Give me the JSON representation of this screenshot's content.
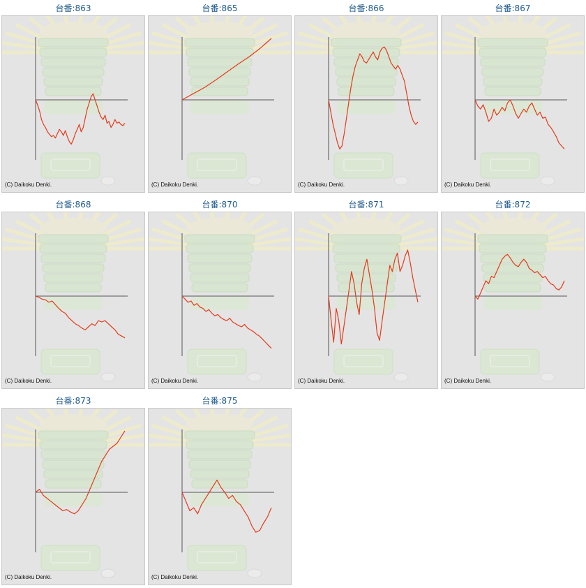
{
  "copyright": "(C) Daikoku Denki.",
  "colors": {
    "series_line": "#e53a1a",
    "axis": "#555555",
    "panel_bg": "#e4e4e4",
    "title": "#1f5a8c"
  },
  "chart_data": [
    {
      "type": "line",
      "title": "台番:863",
      "xlabel": "",
      "ylabel": "",
      "x_range": [
        0,
        100
      ],
      "ylim": [
        -100,
        100
      ],
      "grid": false,
      "values": [
        0,
        -8,
        -18,
        -32,
        -40,
        -45,
        -52,
        -56,
        -60,
        -58,
        -62,
        -55,
        -48,
        -52,
        -58,
        -50,
        -60,
        -68,
        -72,
        -65,
        -55,
        -48,
        -40,
        -52,
        -45,
        -30,
        -15,
        -5,
        5,
        10,
        0,
        -10,
        -20,
        -28,
        -32,
        -25,
        -38,
        -35,
        -45,
        -40,
        -32,
        -38,
        -36,
        -40,
        -42,
        -38
      ]
    },
    {
      "type": "line",
      "title": "台番:865",
      "xlabel": "",
      "ylabel": "",
      "x_range": [
        0,
        100
      ],
      "ylim": [
        -100,
        100
      ],
      "grid": false,
      "values": [
        0,
        10,
        20,
        32,
        45,
        58,
        70,
        84,
        100
      ]
    },
    {
      "type": "line",
      "title": "台番:866",
      "xlabel": "",
      "ylabel": "",
      "x_range": [
        0,
        100
      ],
      "ylim": [
        -100,
        100
      ],
      "grid": false,
      "values": [
        0,
        -20,
        -40,
        -55,
        -70,
        -80,
        -75,
        -55,
        -30,
        -5,
        20,
        40,
        55,
        65,
        75,
        70,
        62,
        60,
        66,
        72,
        78,
        70,
        65,
        78,
        84,
        86,
        80,
        70,
        60,
        55,
        50,
        56,
        50,
        40,
        30,
        10,
        -10,
        -25,
        -35,
        -40,
        -36
      ]
    },
    {
      "type": "line",
      "title": "台番:867",
      "xlabel": "",
      "ylabel": "",
      "x_range": [
        0,
        100
      ],
      "ylim": [
        -100,
        100
      ],
      "grid": false,
      "values": [
        0,
        -10,
        -15,
        -8,
        -20,
        -35,
        -30,
        -15,
        -25,
        -20,
        -12,
        -18,
        -5,
        0,
        -10,
        -22,
        -30,
        -22,
        -15,
        -20,
        -10,
        -5,
        -15,
        -25,
        -20,
        -30,
        -28,
        -40,
        -45,
        -52,
        -60,
        -70,
        -75,
        -80
      ]
    },
    {
      "type": "line",
      "title": "台番:868",
      "xlabel": "",
      "ylabel": "",
      "x_range": [
        0,
        100
      ],
      "ylim": [
        -100,
        100
      ],
      "grid": false,
      "values": [
        0,
        -2,
        -5,
        -6,
        -10,
        -8,
        -14,
        -20,
        -25,
        -28,
        -35,
        -40,
        -45,
        -48,
        -52,
        -55,
        -50,
        -45,
        -48,
        -40,
        -42,
        -40,
        -45,
        -50,
        -55,
        -62,
        -65,
        -68
      ]
    },
    {
      "type": "line",
      "title": "台番:870",
      "xlabel": "",
      "ylabel": "",
      "x_range": [
        0,
        100
      ],
      "ylim": [
        -100,
        100
      ],
      "grid": false,
      "values": [
        0,
        -5,
        -10,
        -8,
        -15,
        -12,
        -18,
        -20,
        -25,
        -22,
        -28,
        -32,
        -30,
        -35,
        -38,
        -40,
        -36,
        -42,
        -45,
        -48,
        -50,
        -46,
        -52,
        -55,
        -58,
        -62,
        -65,
        -70,
        -75,
        -80,
        -85
      ]
    },
    {
      "type": "line",
      "title": "台番:871",
      "xlabel": "",
      "ylabel": "",
      "x_range": [
        0,
        100
      ],
      "ylim": [
        -100,
        100
      ],
      "grid": false,
      "values": [
        0,
        -40,
        -75,
        -20,
        -40,
        -78,
        -50,
        -20,
        10,
        40,
        20,
        -10,
        -30,
        20,
        45,
        60,
        35,
        10,
        -20,
        -60,
        -72,
        -40,
        -10,
        20,
        50,
        40,
        60,
        70,
        40,
        50,
        65,
        75,
        55,
        30,
        10,
        -10
      ]
    },
    {
      "type": "line",
      "title": "台番:872",
      "xlabel": "",
      "ylabel": "",
      "x_range": [
        0,
        100
      ],
      "ylim": [
        -100,
        100
      ],
      "grid": false,
      "values": [
        0,
        -5,
        5,
        15,
        25,
        20,
        32,
        30,
        40,
        50,
        60,
        65,
        68,
        62,
        55,
        50,
        48,
        55,
        60,
        55,
        45,
        42,
        38,
        40,
        35,
        30,
        32,
        25,
        20,
        18,
        12,
        10,
        15,
        25
      ]
    },
    {
      "type": "line",
      "title": "台番:873",
      "xlabel": "",
      "ylabel": "",
      "x_range": [
        0,
        100
      ],
      "ylim": [
        -100,
        100
      ],
      "grid": false,
      "values": [
        0,
        5,
        -5,
        -10,
        -15,
        -20,
        -25,
        -30,
        -28,
        -32,
        -35,
        -30,
        -20,
        -10,
        5,
        20,
        35,
        50,
        60,
        70,
        75,
        80,
        90,
        100
      ]
    },
    {
      "type": "line",
      "title": "台番:875",
      "xlabel": "",
      "ylabel": "",
      "x_range": [
        0,
        100
      ],
      "ylim": [
        -100,
        100
      ],
      "grid": false,
      "values": [
        0,
        -15,
        -30,
        -25,
        -35,
        -20,
        -10,
        0,
        10,
        20,
        8,
        0,
        -10,
        -5,
        -15,
        -20,
        -30,
        -40,
        -55,
        -65,
        -62,
        -50,
        -40,
        -25
      ]
    }
  ]
}
